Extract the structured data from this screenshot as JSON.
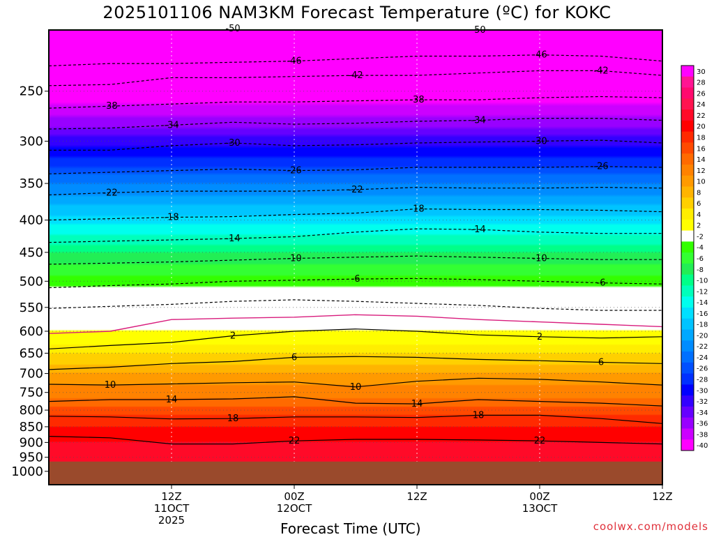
{
  "chart_data": {
    "type": "heatmap",
    "title": "2025101106 NAM3KM Forecast Temperature (ºC) for KOKC",
    "xlabel": "Forecast Time (UTC)",
    "ylabel": "",
    "credit": "coolwx.com/models",
    "x_range_hours": [
      -6,
      54
    ],
    "y_range_hpa": [
      200,
      1050
    ],
    "x_ticks": [
      {
        "hour": 6,
        "line1": "12Z",
        "line2": "11OCT",
        "line3": "2025"
      },
      {
        "hour": 18,
        "line1": "00Z",
        "line2": "12OCT",
        "line3": ""
      },
      {
        "hour": 30,
        "line1": "12Z",
        "line2": "",
        "line3": ""
      },
      {
        "hour": 42,
        "line1": "00Z",
        "line2": "13OCT",
        "line3": ""
      },
      {
        "hour": 54,
        "line1": "12Z",
        "line2": "",
        "line3": ""
      }
    ],
    "y_ticks": [
      250,
      300,
      350,
      400,
      450,
      500,
      550,
      600,
      650,
      700,
      750,
      800,
      850,
      900,
      950,
      1000
    ],
    "y_tick_labels": [
      "250",
      "300",
      "350",
      "400",
      "450",
      "500",
      "550",
      "600",
      "650",
      "700",
      "750",
      "800",
      "850",
      "900",
      "950",
      "1000"
    ],
    "surface_pressure_hpa": 965,
    "freezing_level_hpa": 585,
    "temperature_profile": {
      "pressure_hpa": [
        200,
        230,
        250,
        280,
        300,
        330,
        350,
        380,
        400,
        430,
        450,
        480,
        500,
        530,
        550,
        570,
        600,
        630,
        650,
        680,
        700,
        730,
        750,
        780,
        800,
        830,
        850,
        880,
        900,
        930,
        950,
        965
      ],
      "temperature_c": [
        -52,
        -48,
        -42,
        -37,
        -33,
        -28,
        -24,
        -20,
        -17,
        -13,
        -10,
        -7,
        -5,
        -2,
        0,
        1,
        2,
        4,
        6,
        8,
        10,
        12,
        13,
        15,
        17,
        19,
        20,
        21,
        22,
        22.5,
        23,
        24
      ]
    },
    "contours": [
      {
        "value": -50,
        "label": "-50",
        "dashed": true,
        "pressure_hpa": [
          200,
          200,
          199,
          199,
          198,
          199,
          200,
          200,
          199,
          199,
          200
        ]
      },
      {
        "value": -46,
        "label": "-46",
        "dashed": true,
        "pressure_hpa": [
          228,
          226,
          226,
          225,
          224,
          222,
          220,
          220,
          219,
          220,
          224
        ]
      },
      {
        "value": -42,
        "label": "-42",
        "dashed": true,
        "pressure_hpa": [
          245,
          244,
          238,
          238,
          237,
          236,
          236,
          234,
          232,
          232,
          236
        ]
      },
      {
        "value": -38,
        "label": "-38",
        "dashed": true,
        "pressure_hpa": [
          266,
          264,
          262,
          260,
          260,
          259,
          258,
          258,
          256,
          255,
          256
        ]
      },
      {
        "value": -34,
        "label": "-34",
        "dashed": true,
        "pressure_hpa": [
          287,
          286,
          283,
          280,
          282,
          281,
          279,
          278,
          276,
          276,
          278
        ]
      },
      {
        "value": -30,
        "label": "-30",
        "dashed": true,
        "pressure_hpa": [
          310,
          310,
          305,
          302,
          305,
          304,
          302,
          301,
          300,
          299,
          302
        ]
      },
      {
        "value": -26,
        "label": "-26",
        "dashed": true,
        "pressure_hpa": [
          338,
          336,
          334,
          332,
          334,
          333,
          330,
          330,
          330,
          329,
          330
        ]
      },
      {
        "value": -22,
        "label": "-22",
        "dashed": true,
        "pressure_hpa": [
          365,
          362,
          360,
          360,
          360,
          358,
          355,
          356,
          356,
          355,
          356
        ]
      },
      {
        "value": -18,
        "label": "-18",
        "dashed": true,
        "pressure_hpa": [
          400,
          398,
          396,
          395,
          392,
          390,
          384,
          385,
          385,
          386,
          388
        ]
      },
      {
        "value": -14,
        "label": "-14",
        "dashed": true,
        "pressure_hpa": [
          434,
          432,
          430,
          428,
          425,
          418,
          413,
          414,
          418,
          420,
          420
        ]
      },
      {
        "value": -10,
        "label": "-10",
        "dashed": true,
        "pressure_hpa": [
          470,
          468,
          466,
          463,
          460,
          458,
          456,
          458,
          460,
          462,
          462
        ]
      },
      {
        "value": -6,
        "label": "-6",
        "dashed": true,
        "pressure_hpa": [
          512,
          508,
          505,
          500,
          498,
          496,
          495,
          497,
          500,
          503,
          505
        ]
      },
      {
        "value": -2,
        "label": "",
        "dashed": true,
        "pressure_hpa": [
          552,
          548,
          544,
          538,
          535,
          538,
          542,
          546,
          552,
          556,
          556
        ]
      },
      {
        "value": 0,
        "label": "",
        "dashed": false,
        "color": "#d81b7c",
        "pressure_hpa": [
          605,
          600,
          575,
          572,
          570,
          565,
          568,
          575,
          580,
          585,
          590
        ]
      },
      {
        "value": 2,
        "label": "2",
        "dashed": false,
        "pressure_hpa": [
          640,
          632,
          625,
          610,
          600,
          595,
          600,
          608,
          612,
          615,
          612
        ]
      },
      {
        "value": 6,
        "label": "6",
        "dashed": false,
        "pressure_hpa": [
          690,
          684,
          675,
          670,
          660,
          658,
          660,
          665,
          668,
          672,
          675
        ]
      },
      {
        "value": 10,
        "label": "10",
        "dashed": false,
        "pressure_hpa": [
          728,
          730,
          727,
          724,
          722,
          735,
          720,
          712,
          715,
          722,
          730
        ]
      },
      {
        "value": 14,
        "label": "14",
        "dashed": false,
        "pressure_hpa": [
          775,
          770,
          770,
          768,
          762,
          780,
          782,
          770,
          775,
          780,
          788
        ]
      },
      {
        "value": 18,
        "label": "18",
        "dashed": false,
        "pressure_hpa": [
          818,
          820,
          826,
          825,
          820,
          820,
          822,
          815,
          815,
          825,
          840
        ]
      },
      {
        "value": 22,
        "label": "22",
        "dashed": false,
        "pressure_hpa": [
          880,
          885,
          905,
          905,
          895,
          890,
          890,
          892,
          895,
          900,
          905
        ]
      }
    ],
    "colorbar": {
      "labels": [
        "30",
        "28",
        "26",
        "24",
        "22",
        "20",
        "18",
        "16",
        "14",
        "12",
        "10",
        "8",
        "6",
        "4",
        "2",
        "-2",
        "-4",
        "-6",
        "-8",
        "-10",
        "-12",
        "-14",
        "-16",
        "-18",
        "-20",
        "-22",
        "-24",
        "-26",
        "-28",
        "-30",
        "-32",
        "-34",
        "-36",
        "-38",
        "-40"
      ],
      "colors": [
        "#ff00ff",
        "#ff1493",
        "#ff0a6e",
        "#ff1450",
        "#ff0a28",
        "#ff0000",
        "#ff2a00",
        "#ff4a00",
        "#ff6a00",
        "#ff8200",
        "#ff9a00",
        "#ffb400",
        "#ffd000",
        "#ffee00",
        "#ffff00",
        "#ffffff",
        "#33ff00",
        "#33ff33",
        "#22ee55",
        "#00ff88",
        "#00ffbb",
        "#00ffee",
        "#00e0ff",
        "#00c4ff",
        "#00a8ff",
        "#008cff",
        "#0070ff",
        "#0050ff",
        "#0030ff",
        "#0000ff",
        "#3300ff",
        "#6600ff",
        "#9900ff",
        "#cc00ff",
        "#ff00ff"
      ]
    },
    "colors": {
      "ground": "#9a4a2c",
      "freezing_line": "#d81b7c",
      "credit": "#e0303a"
    }
  }
}
